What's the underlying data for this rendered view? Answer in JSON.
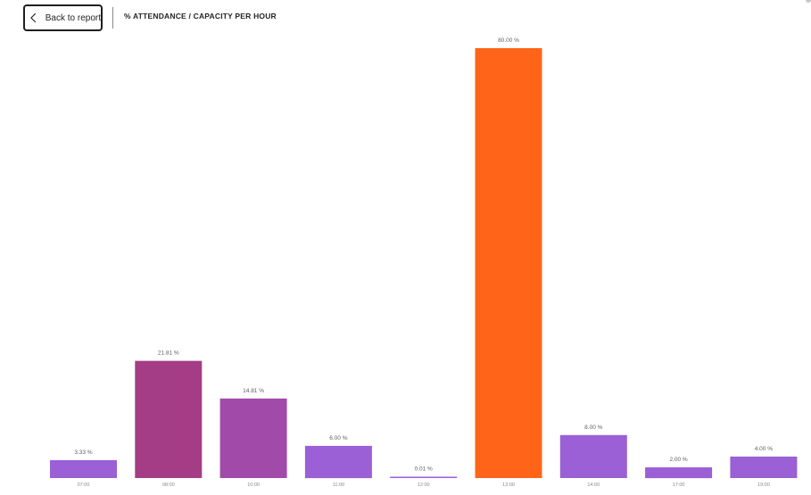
{
  "header": {
    "back_label": "Back to report",
    "title": "% ATTENDANCE / CAPACITY PER HOUR"
  },
  "icons": {
    "back": "chevron-left-icon"
  },
  "chart_data": {
    "type": "bar",
    "title": "% ATTENDANCE / CAPACITY PER HOUR",
    "xlabel": "",
    "ylabel": "",
    "ylim": [
      0,
      80
    ],
    "grid": false,
    "categories": [
      "07:00",
      "08:00",
      "10:00",
      "11:00",
      "12:00",
      "13:00",
      "14:00",
      "17:00",
      "19:00"
    ],
    "values": [
      3.33,
      21.81,
      14.81,
      6.0,
      0.01,
      80.0,
      8.0,
      2.0,
      4.0
    ],
    "data_labels": [
      "3.33 %",
      "21.81 %",
      "14.81 %",
      "6.00 %",
      "0.01 %",
      "80.00 %",
      "8.00 %",
      "2.00 %",
      "4.00 %"
    ],
    "colors": [
      "#9b5fd6",
      "#a43d86",
      "#a24aaa",
      "#9b5fd6",
      "#9b5fd6",
      "#ff6418",
      "#9b5fd6",
      "#9b5fd6",
      "#9b5fd6"
    ]
  }
}
